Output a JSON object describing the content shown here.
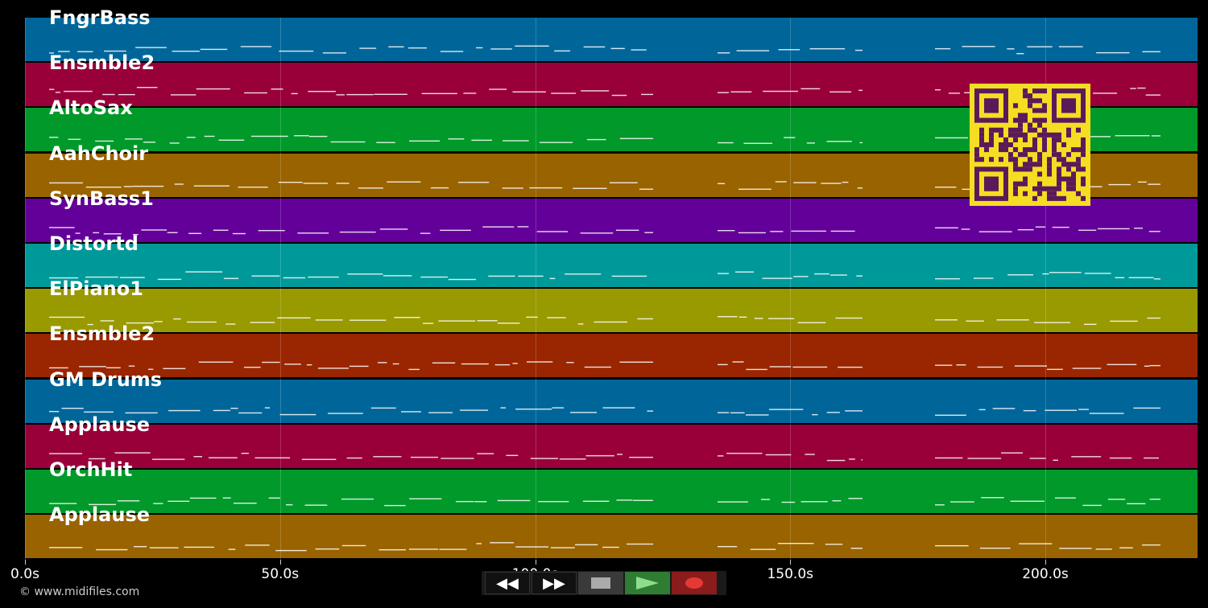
{
  "tracks": [
    {
      "name": "FngrBass",
      "color": "#006699"
    },
    {
      "name": "Ensmble2",
      "color": "#99003a"
    },
    {
      "name": "AltoSax",
      "color": "#00992a"
    },
    {
      "name": "AahChoir",
      "color": "#996300"
    },
    {
      "name": "SynBass1",
      "color": "#630099"
    },
    {
      "name": "Distortd",
      "color": "#009999"
    },
    {
      "name": "ElPiano1",
      "color": "#999900"
    },
    {
      "name": "Ensmble2",
      "color": "#992600"
    },
    {
      "name": "GM Drums",
      "color": "#006699"
    },
    {
      "name": "Applause",
      "color": "#99003a"
    },
    {
      "name": "OrchHit",
      "color": "#00992a"
    },
    {
      "name": "Applause",
      "color": "#996300"
    }
  ],
  "timeline": {
    "ticks": [
      "0.0s",
      "50.0s",
      "100.0s",
      "150.0s",
      "200.0s"
    ],
    "tick_values": [
      0,
      50,
      100,
      150,
      200
    ],
    "max_seconds": 230
  },
  "footer": {
    "copyright": "© www.midifiles.com"
  },
  "transport": {
    "rewind_icon": "rewind-icon",
    "forward_icon": "fast-forward-icon",
    "stop_icon": "stop-icon",
    "play_icon": "play-icon",
    "record_icon": "record-icon"
  },
  "overlay": {
    "qr_colors": [
      "#f5dd23",
      "#5a1a5a"
    ]
  }
}
